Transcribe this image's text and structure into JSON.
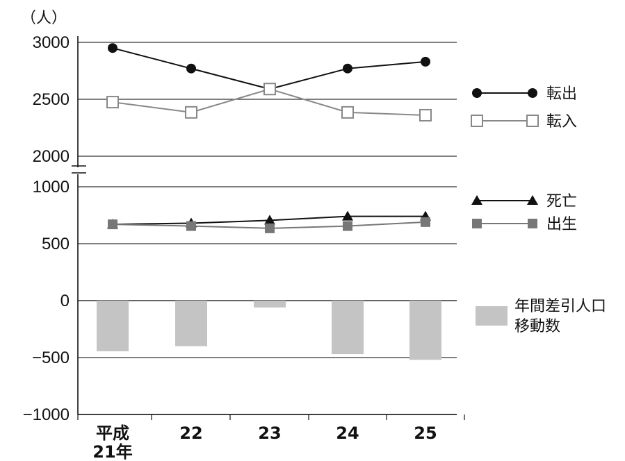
{
  "chart_data": {
    "type": "line",
    "unit_label": "（人）",
    "categories": [
      [
        "平成",
        "21年"
      ],
      [
        "22"
      ],
      [
        "23"
      ],
      [
        "24"
      ],
      [
        "25"
      ]
    ],
    "upper_panel": {
      "y_ticks": [
        "3000",
        "2500",
        "2000"
      ],
      "ylim": [
        2000,
        3000
      ],
      "grid": true,
      "series": [
        {
          "name": "転出",
          "marker": "filled-circle",
          "color": "#111111",
          "values": [
            2950,
            2770,
            2590,
            2770,
            2830
          ]
        },
        {
          "name": "転入",
          "marker": "open-square",
          "color": "#888888",
          "values": [
            2475,
            2385,
            2590,
            2385,
            2360
          ]
        }
      ]
    },
    "lower_panel": {
      "y_ticks": [
        "1000",
        "500",
        "0",
        "−500",
        "−1000"
      ],
      "ylim": [
        -1000,
        1000
      ],
      "grid": true,
      "series": [
        {
          "name": "死亡",
          "type": "line",
          "marker": "filled-triangle",
          "color": "#111111",
          "values": [
            670,
            680,
            705,
            740,
            740
          ]
        },
        {
          "name": "出生",
          "type": "line",
          "marker": "filled-square",
          "color": "#777777",
          "values": [
            670,
            655,
            635,
            655,
            690
          ]
        },
        {
          "name": "年間差引人口移動数",
          "type": "bar",
          "color": "#c4c4c4",
          "values": [
            -445,
            -400,
            -60,
            -470,
            -520
          ]
        }
      ]
    },
    "legend": {
      "placement": "right",
      "items": [
        {
          "label": "転出"
        },
        {
          "label": "転入"
        },
        {
          "label": "死亡"
        },
        {
          "label": "出生"
        },
        {
          "label": "年間差引人口\n移動数",
          "lines": [
            "年間差引人口",
            "移動数"
          ]
        }
      ]
    }
  }
}
